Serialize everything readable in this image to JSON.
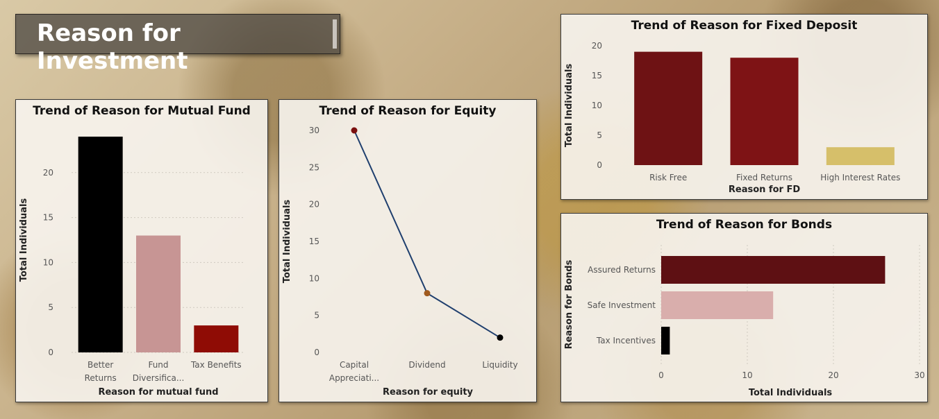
{
  "page": {
    "title": "Reason for Investment"
  },
  "chart_data": [
    {
      "id": "mf",
      "type": "bar",
      "title": "Trend of Reason for Mutual Fund",
      "xlabel": "Reason for mutual fund",
      "ylabel": "Total Individuals",
      "categories": [
        [
          "Better",
          "Returns"
        ],
        [
          "Fund",
          "Diversifica..."
        ],
        [
          "Tax Benefits"
        ]
      ],
      "values": [
        24,
        13,
        3
      ],
      "colors": [
        "#000000",
        "#c79594",
        "#8f0c05"
      ],
      "ylim": [
        0,
        25
      ],
      "yticks": [
        0,
        5,
        10,
        15,
        20
      ],
      "grid": true
    },
    {
      "id": "eq",
      "type": "line",
      "title": "Trend of Reason for Equity",
      "xlabel": "Reason for equity",
      "ylabel": "Total Individuals",
      "categories": [
        [
          "Capital",
          "Appreciati..."
        ],
        [
          "Dividend"
        ],
        [
          "Liquidity"
        ]
      ],
      "values": [
        30,
        8,
        2
      ],
      "marker_colors": [
        "#7a0f0f",
        "#a05a1e",
        "#000000"
      ],
      "line_color": "#1f3f6e",
      "ylim": [
        0,
        30
      ],
      "yticks": [
        0,
        5,
        10,
        15,
        20,
        25,
        30
      ],
      "grid": false
    },
    {
      "id": "fd",
      "type": "bar",
      "title": "Trend of Reason for Fixed Deposit",
      "xlabel": "Reason for FD",
      "ylabel": "Total Individuals",
      "categories": [
        [
          "Risk Free"
        ],
        [
          "Fixed Returns"
        ],
        [
          "High Interest Rates"
        ]
      ],
      "values": [
        19,
        18,
        3
      ],
      "colors": [
        "#6e1214",
        "#7e1315",
        "#d6bf6a"
      ],
      "ylim": [
        0,
        20
      ],
      "yticks": [
        0,
        5,
        10,
        15,
        20
      ],
      "grid": false
    },
    {
      "id": "bd",
      "type": "bar",
      "orientation": "horizontal",
      "title": "Trend of Reason for Bonds",
      "xlabel": "Total Individuals",
      "ylabel": "Reason for Bonds",
      "categories": [
        [
          "Assured Returns"
        ],
        [
          "Safe Investment"
        ],
        [
          "Tax Incentives"
        ]
      ],
      "values": [
        26,
        13,
        1
      ],
      "colors": [
        "#5e1013",
        "#d9aeac",
        "#000000"
      ],
      "xlim": [
        0,
        30
      ],
      "xticks": [
        0,
        10,
        20,
        30
      ],
      "grid": true
    }
  ]
}
